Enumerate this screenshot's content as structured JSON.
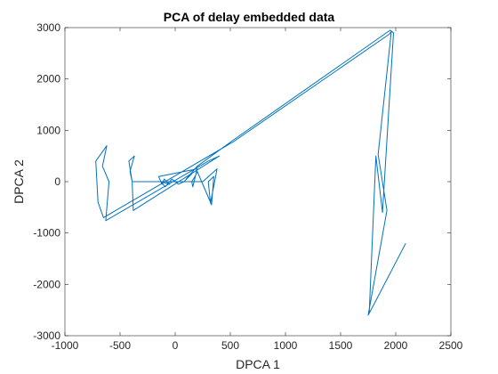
{
  "chart_data": {
    "type": "line",
    "title": "PCA of delay embedded data",
    "xlabel": "DPCA 1",
    "ylabel": "DPCA 2",
    "xlim": [
      -1000,
      2500
    ],
    "ylim": [
      -3000,
      3000
    ],
    "xticks": [
      -1000,
      -500,
      0,
      500,
      1000,
      1500,
      2000,
      2500
    ],
    "yticks": [
      -3000,
      -2000,
      -1000,
      0,
      1000,
      2000,
      3000
    ],
    "xtick_labels": [
      "-1000",
      "-500",
      "0",
      "500",
      "1000",
      "1500",
      "2000",
      "2500"
    ],
    "ytick_labels": [
      "-3000",
      "-2000",
      "-1000",
      "0",
      "1000",
      "2000",
      "3000"
    ],
    "grid": false,
    "color": "#0072BD",
    "series": [
      {
        "x": [
          2090,
          1800,
          1750,
          1920,
          1840,
          1960,
          1940,
          530,
          -650,
          -700,
          -720,
          -620,
          -660,
          -600,
          -630,
          300,
          400,
          -380,
          -390,
          -410,
          -370,
          -420,
          -390,
          250,
          380,
          320,
          300,
          350,
          330,
          200,
          180,
          150,
          160,
          200,
          -150,
          -120,
          -100,
          -80,
          -50,
          -130,
          -90,
          -30,
          0,
          30,
          80,
          150,
          100,
          200,
          520,
          1950,
          1980,
          1880,
          1820,
          1760
        ],
        "y": [
          -1200,
          -2400,
          -2600,
          -560,
          530,
          2920,
          2870,
          780,
          -700,
          -400,
          400,
          700,
          300,
          0,
          -760,
          400,
          500,
          -560,
          0,
          200,
          500,
          400,
          0,
          0,
          250,
          -420,
          0,
          100,
          -450,
          200,
          100,
          0,
          -100,
          250,
          100,
          -50,
          50,
          0,
          -50,
          0,
          -100,
          50,
          0,
          -50,
          0,
          150,
          50,
          300,
          800,
          2950,
          2900,
          -600,
          500,
          -2550
        ]
      }
    ]
  }
}
